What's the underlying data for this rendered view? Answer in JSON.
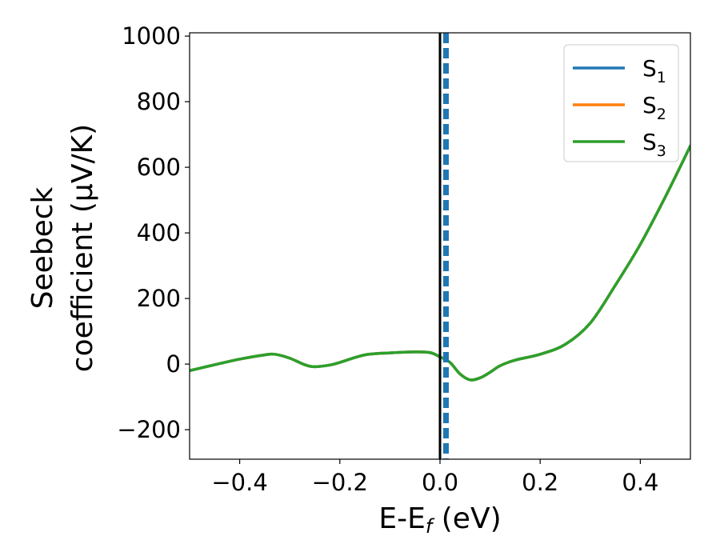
{
  "chart_data": {
    "type": "line",
    "xlabel_main": "E-E",
    "xlabel_sub": "f",
    "xlabel_unit": " (eV)",
    "ylabel_line1": "Seebeck",
    "ylabel_line2": "coefficient  (μV/K)",
    "xlim": [
      -0.5,
      0.5
    ],
    "ylim": [
      -290,
      1010
    ],
    "xticks": [
      -0.4,
      -0.2,
      0.0,
      0.2,
      0.4
    ],
    "xtick_labels": [
      "−0.4",
      "−0.2",
      "0.0",
      "0.2",
      "0.4"
    ],
    "yticks": [
      -200,
      0,
      200,
      400,
      600,
      800,
      1000
    ],
    "ytick_labels": [
      "−200",
      "0",
      "200",
      "400",
      "600",
      "800",
      "1000"
    ],
    "grid": false,
    "legend_position": "top-right",
    "fermi_level_line": {
      "x": 0.0,
      "color": "#000000",
      "style": "solid"
    },
    "dashed_line": {
      "x": 0.012,
      "color": "#1f77b4",
      "style": "dashed"
    },
    "x": [
      -0.5,
      -0.45,
      -0.4,
      -0.35,
      -0.33,
      -0.3,
      -0.27,
      -0.25,
      -0.22,
      -0.2,
      -0.15,
      -0.1,
      -0.05,
      -0.02,
      0.0,
      0.02,
      0.04,
      0.06,
      0.08,
      0.1,
      0.12,
      0.15,
      0.2,
      0.25,
      0.3,
      0.35,
      0.4,
      0.45,
      0.5
    ],
    "series": [
      {
        "name": "S",
        "sub": "1",
        "color": "#1f77b4",
        "values": [
          -20,
          -2,
          15,
          28,
          30,
          18,
          -2,
          -8,
          -3,
          5,
          28,
          34,
          37,
          35,
          22,
          5,
          -30,
          -48,
          -42,
          -25,
          -5,
          12,
          30,
          60,
          125,
          240,
          365,
          510,
          665
        ]
      },
      {
        "name": "S",
        "sub": "2",
        "color": "#ff7f0e",
        "values": [
          -20,
          -2,
          15,
          28,
          30,
          18,
          -2,
          -8,
          -3,
          5,
          28,
          34,
          37,
          35,
          22,
          5,
          -30,
          -48,
          -42,
          -25,
          -5,
          12,
          30,
          60,
          125,
          240,
          365,
          510,
          665
        ]
      },
      {
        "name": "S",
        "sub": "3",
        "color": "#2ca02c",
        "values": [
          -20,
          -2,
          15,
          28,
          30,
          18,
          -2,
          -8,
          -3,
          5,
          28,
          34,
          37,
          35,
          22,
          5,
          -30,
          -48,
          -42,
          -25,
          -5,
          12,
          30,
          60,
          125,
          240,
          365,
          510,
          665
        ]
      }
    ]
  }
}
